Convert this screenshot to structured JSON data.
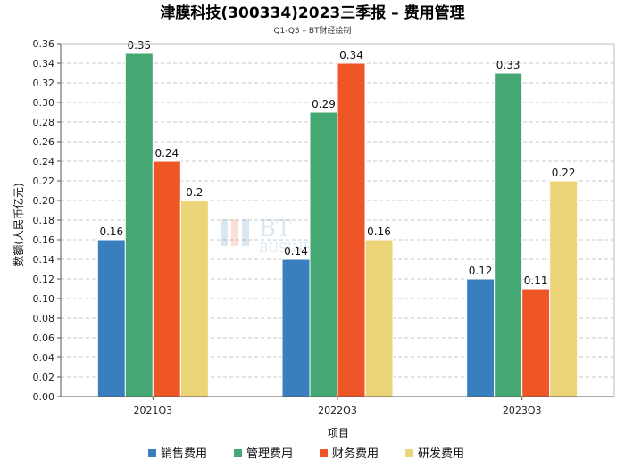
{
  "chart_data": {
    "type": "bar",
    "title": "津膜科技(300334)2023三季报 – 费用管理",
    "subtitle": "Q1-Q3 – BT财经绘制",
    "xlabel": "项目",
    "ylabel": "数额(人民币亿元)",
    "categories": [
      "2021Q3",
      "2022Q3",
      "2023Q3"
    ],
    "ylim": [
      0,
      0.36
    ],
    "ytick_step": 0.02,
    "grid": true,
    "legend_position": "bottom",
    "series": [
      {
        "name": "销售费用",
        "color": "#3a7fbd",
        "values": [
          0.16,
          0.14,
          0.12
        ],
        "labels": [
          "0.16",
          "0.14",
          "0.12"
        ]
      },
      {
        "name": "管理费用",
        "color": "#45a872",
        "values": [
          0.35,
          0.29,
          0.33
        ],
        "labels": [
          "0.35",
          "0.29",
          "0.33"
        ]
      },
      {
        "name": "财务费用",
        "color": "#ee5527",
        "values": [
          0.24,
          0.34,
          0.11
        ],
        "labels": [
          "0.24",
          "0.34",
          "0.11"
        ]
      },
      {
        "name": "研发费用",
        "color": "#ecd479",
        "values": [
          0.2,
          0.16,
          0.22
        ],
        "labels": [
          "0.2",
          "0.16",
          "0.22"
        ]
      }
    ],
    "watermark": "BT财经 BUSINESSTIMES"
  }
}
